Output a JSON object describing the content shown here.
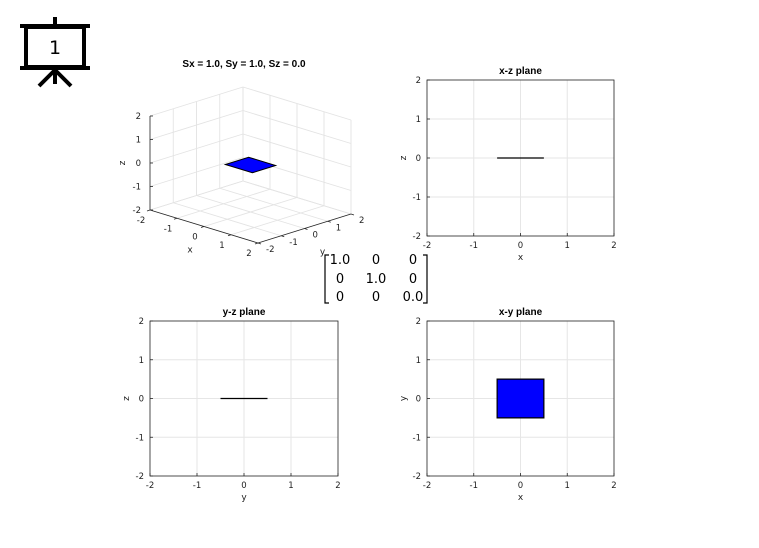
{
  "slide_number": "1",
  "matrix": {
    "rows": [
      [
        "1.0",
        "0",
        "0"
      ],
      [
        "0",
        "1.0",
        "0"
      ],
      [
        "0",
        "0",
        "0.0"
      ]
    ],
    "highlight_color": "#e8000b",
    "highlight_cell": [
      2,
      2
    ]
  },
  "chart_data": [
    {
      "type": "surface3d",
      "title": "Sx = 1.0, Sy = 1.0, Sz = 0.0",
      "xlabel": "x",
      "ylabel": "y",
      "zlabel": "z",
      "xlim": [
        -2,
        2
      ],
      "ylim": [
        -2,
        2
      ],
      "zlim": [
        -2,
        2
      ],
      "xticks": [
        "-2",
        "-1",
        "0",
        "1",
        "2"
      ],
      "yticks": [
        "-2",
        "-1",
        "0",
        "1",
        "2"
      ],
      "zticks": [
        "-2",
        "-1",
        "0",
        "1",
        "2"
      ],
      "grid": true,
      "fill_color": "#0000ff",
      "square": {
        "x": [
          -0.5,
          0.5
        ],
        "y": [
          -0.5,
          0.5
        ],
        "z": 0.0
      }
    },
    {
      "type": "line",
      "title": "x-z plane",
      "xlabel": "x",
      "ylabel": "z",
      "xlim": [
        -2,
        2
      ],
      "ylim": [
        -2,
        2
      ],
      "xticks": [
        "-2",
        "-1",
        "0",
        "1",
        "2"
      ],
      "yticks": [
        "-2",
        "-1",
        "0",
        "1",
        "2"
      ],
      "grid": true,
      "series": [
        {
          "x": [
            -0.5,
            0.5
          ],
          "y": [
            0,
            0
          ]
        }
      ]
    },
    {
      "type": "line",
      "title": "y-z plane",
      "xlabel": "y",
      "ylabel": "z",
      "xlim": [
        -2,
        2
      ],
      "ylim": [
        -2,
        2
      ],
      "xticks": [
        "-2",
        "-1",
        "0",
        "1",
        "2"
      ],
      "yticks": [
        "-2",
        "-1",
        "0",
        "1",
        "2"
      ],
      "grid": true,
      "series": [
        {
          "x": [
            -0.5,
            0.5
          ],
          "y": [
            0,
            0
          ]
        }
      ]
    },
    {
      "type": "area",
      "title": "x-y plane",
      "xlabel": "x",
      "ylabel": "y",
      "xlim": [
        -2,
        2
      ],
      "ylim": [
        -2,
        2
      ],
      "xticks": [
        "-2",
        "-1",
        "0",
        "1",
        "2"
      ],
      "yticks": [
        "-2",
        "-1",
        "0",
        "1",
        "2"
      ],
      "grid": true,
      "fill_color": "#0000ff",
      "series": [
        {
          "x": [
            -0.5,
            0.5,
            0.5,
            -0.5
          ],
          "y": [
            -0.5,
            -0.5,
            0.5,
            0.5
          ]
        }
      ]
    }
  ]
}
